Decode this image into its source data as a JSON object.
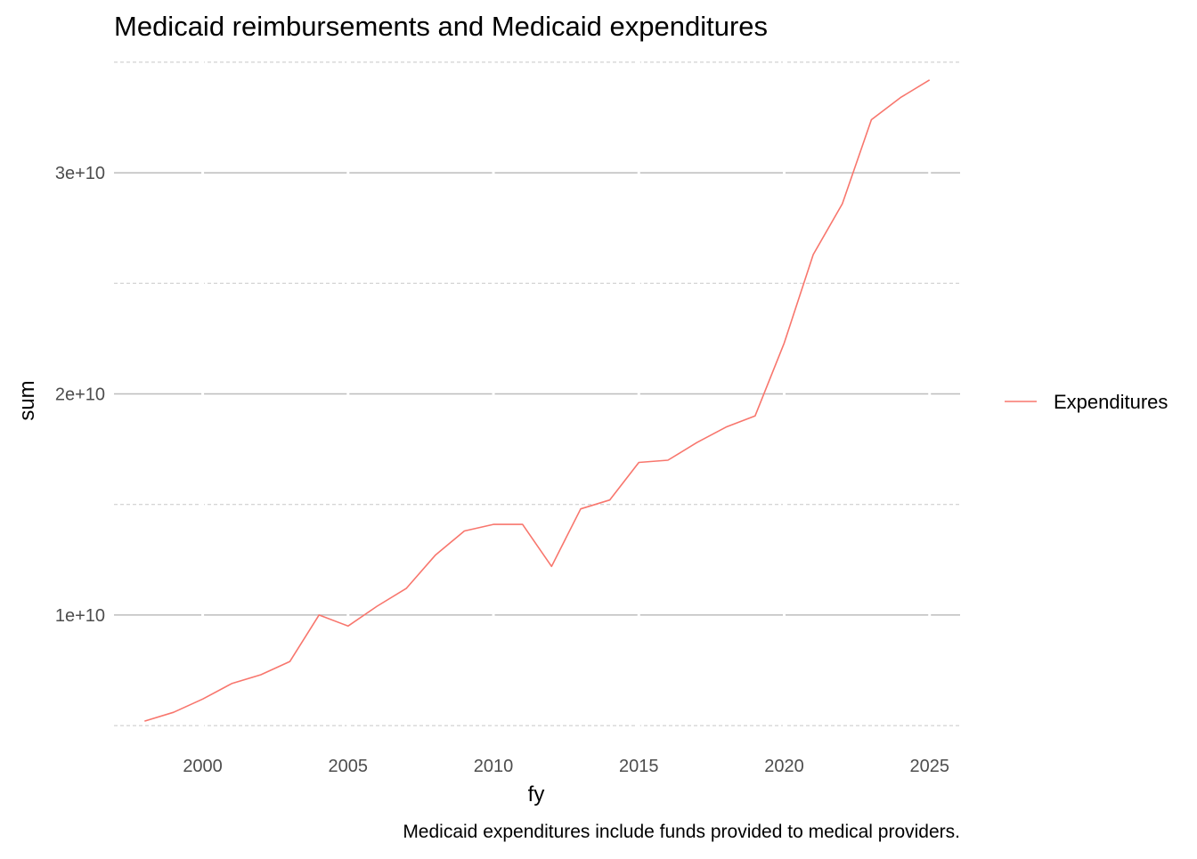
{
  "chart_data": {
    "type": "line",
    "title": "Medicaid reimbursements and Medicaid expenditures",
    "xlabel": "fy",
    "ylabel": "sum",
    "caption": "Medicaid expenditures include funds provided to medical providers.",
    "xlim": [
      1996.95,
      2026.05
    ],
    "ylim": [
      4400000000,
      35600000000
    ],
    "x_ticks": [
      2000,
      2005,
      2010,
      2015,
      2020,
      2025
    ],
    "x_tick_labels": [
      "2000",
      "2005",
      "2010",
      "2015",
      "2020",
      "2025"
    ],
    "y_major_ticks": [
      10000000000,
      20000000000,
      30000000000
    ],
    "y_tick_labels": [
      "1e+10",
      "2e+10",
      "3e+10"
    ],
    "y_minor_ticks": [
      5000000000,
      15000000000,
      25000000000,
      35000000000
    ],
    "grid": true,
    "legend_position": "right",
    "series": [
      {
        "name": "Expenditures",
        "color": "#F8766D",
        "x": [
          1998,
          1999,
          2000,
          2001,
          2002,
          2003,
          2004,
          2005,
          2006,
          2007,
          2008,
          2009,
          2010,
          2011,
          2012,
          2013,
          2014,
          2015,
          2016,
          2017,
          2018,
          2019,
          2020,
          2021,
          2022,
          2023,
          2024,
          2025
        ],
        "values": [
          5200000000,
          5600000000,
          6200000000,
          6900000000,
          7300000000,
          7900000000,
          10000000000,
          9500000000,
          10400000000,
          11200000000,
          12700000000,
          13800000000,
          14100000000,
          14100000000,
          12200000000,
          14800000000,
          15200000000,
          16900000000,
          17000000000,
          17800000000,
          18500000000,
          19000000000,
          22300000000,
          26300000000,
          28600000000,
          32400000000,
          33400000000,
          34200000000
        ]
      }
    ]
  }
}
